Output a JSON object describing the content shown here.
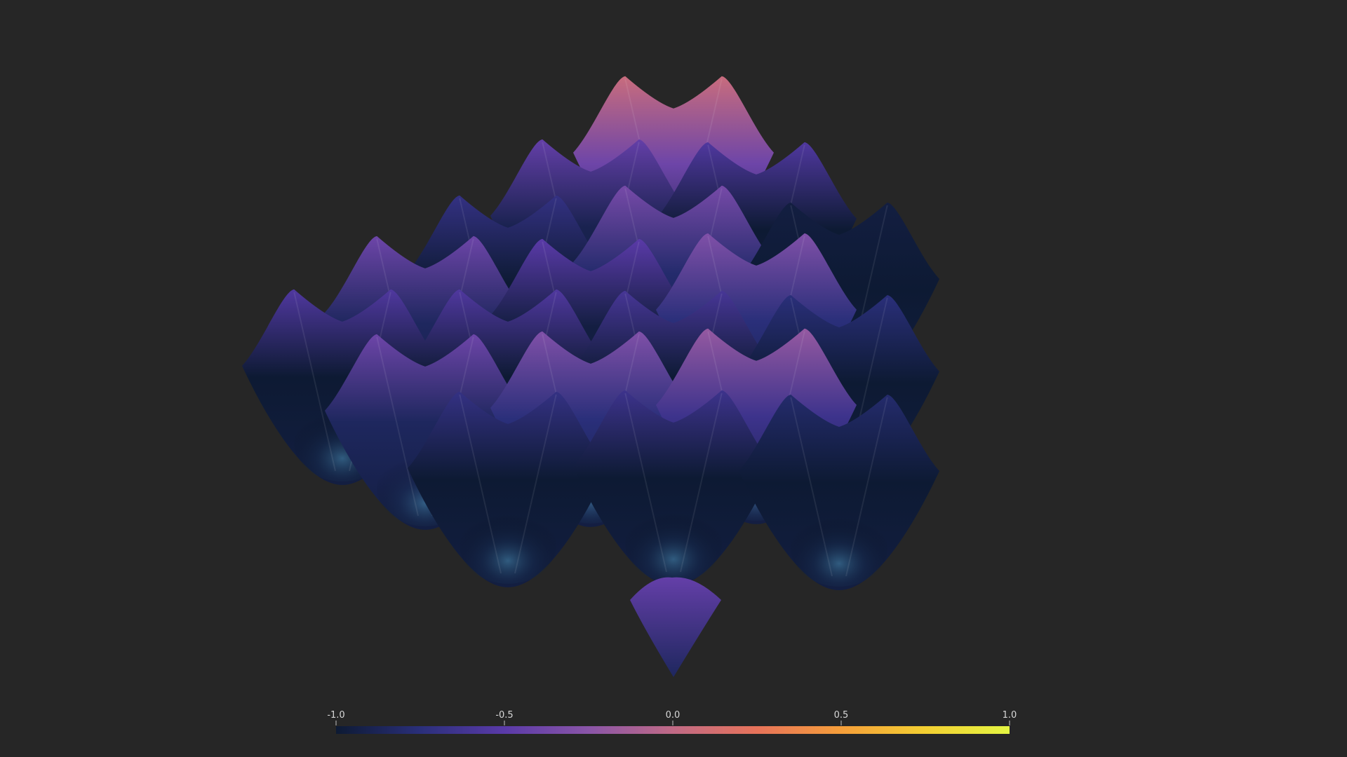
{
  "chart_data": {
    "type": "surface",
    "title": "",
    "xlabel": "",
    "ylabel": "",
    "zlabel": "",
    "background_color": "#262626",
    "surface": {
      "description_function": "sin-cos grid of bowl-shaped basins, peak height toward back-left",
      "grid_cells": [
        {
          "row": 0,
          "col": 0,
          "peak_value": 0.05
        },
        {
          "row": 0,
          "col": 1,
          "peak_value": -0.55
        },
        {
          "row": 0,
          "col": 2,
          "peak_value": -0.95
        },
        {
          "row": 1,
          "col": 0,
          "peak_value": -0.45
        },
        {
          "row": 1,
          "col": 1,
          "peak_value": -0.35
        },
        {
          "row": 1,
          "col": 2,
          "peak_value": -0.3
        },
        {
          "row": 1,
          "col": 3,
          "peak_value": -0.75
        },
        {
          "row": 2,
          "col": 0,
          "peak_value": -0.7
        },
        {
          "row": 2,
          "col": 1,
          "peak_value": -0.5
        },
        {
          "row": 2,
          "col": 2,
          "peak_value": -0.6
        },
        {
          "row": 2,
          "col": 3,
          "peak_value": -0.2
        },
        {
          "row": 2,
          "col": 4,
          "peak_value": -0.8
        },
        {
          "row": 3,
          "col": 0,
          "peak_value": -0.4
        },
        {
          "row": 3,
          "col": 1,
          "peak_value": -0.55
        },
        {
          "row": 3,
          "col": 2,
          "peak_value": -0.3
        },
        {
          "row": 3,
          "col": 3,
          "peak_value": -0.65
        },
        {
          "row": 4,
          "col": 0,
          "peak_value": -0.55
        },
        {
          "row": 4,
          "col": 1,
          "peak_value": -0.4
        },
        {
          "row": 4,
          "col": 2,
          "peak_value": -0.7
        }
      ]
    },
    "colorscale": {
      "name": "plasma",
      "stops": [
        {
          "value": -1.0,
          "color": "#0d1a33"
        },
        {
          "value": -0.75,
          "color": "#2a2f7a"
        },
        {
          "value": -0.5,
          "color": "#5a3aa8"
        },
        {
          "value": -0.25,
          "color": "#8a55a8"
        },
        {
          "value": 0.0,
          "color": "#c06a86"
        },
        {
          "value": 0.25,
          "color": "#e7735a"
        },
        {
          "value": 0.5,
          "color": "#f59e3a"
        },
        {
          "value": 0.75,
          "color": "#f3cf32"
        },
        {
          "value": 1.0,
          "color": "#e4f542"
        }
      ],
      "ticks": [
        {
          "value": -1.0,
          "label": "-1.0"
        },
        {
          "value": -0.5,
          "label": "-0.5"
        },
        {
          "value": 0.0,
          "label": "0.0"
        },
        {
          "value": 0.5,
          "label": "0.5"
        },
        {
          "value": 1.0,
          "label": "1.0"
        }
      ],
      "range": [
        -1.0,
        1.0
      ],
      "position": "bottom"
    }
  }
}
